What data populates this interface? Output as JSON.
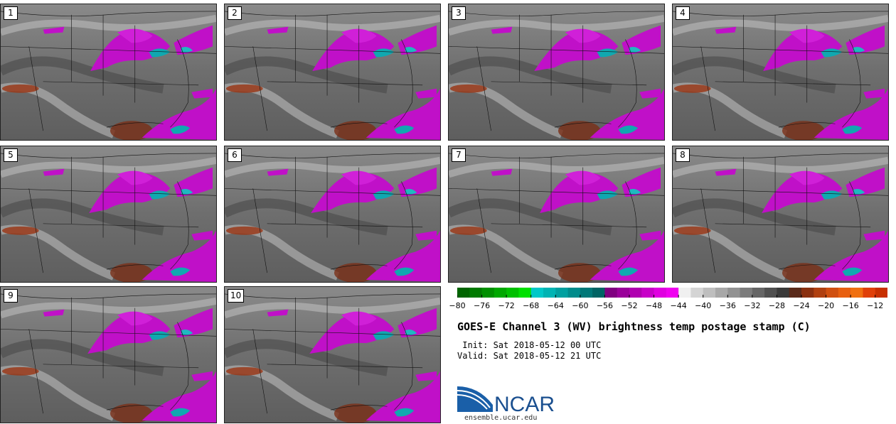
{
  "panels": [
    {
      "label": "1"
    },
    {
      "label": "2"
    },
    {
      "label": "3"
    },
    {
      "label": "4"
    },
    {
      "label": "5"
    },
    {
      "label": "6"
    },
    {
      "label": "7"
    },
    {
      "label": "8"
    },
    {
      "label": "9"
    },
    {
      "label": "10"
    }
  ],
  "colorbar": {
    "min": -80,
    "max": -10,
    "step": 2,
    "colors": [
      "#006400",
      "#007a00",
      "#009000",
      "#00a800",
      "#00c000",
      "#00e000",
      "#00c8c8",
      "#00b4b4",
      "#00a0a0",
      "#008c8c",
      "#007878",
      "#006464",
      "#800080",
      "#9a009a",
      "#b000b0",
      "#c800c8",
      "#e000e0",
      "#f000f0",
      "#f0f0f0",
      "#d4d4d4",
      "#bebebe",
      "#a8a8a8",
      "#929292",
      "#7c7c7c",
      "#666666",
      "#505050",
      "#3a3a3a",
      "#5a2a1a",
      "#8a3010",
      "#b04010",
      "#d05010",
      "#e86010",
      "#f07010",
      "#e04008",
      "#c83000"
    ],
    "tick_labels": [
      "-80",
      "-76",
      "-72",
      "-68",
      "-64",
      "-60",
      "-56",
      "-52",
      "-48",
      "-44",
      "-40",
      "-36",
      "-32",
      "-28",
      "-24",
      "-20",
      "-16",
      "-12"
    ],
    "tick_values": [
      -80,
      -76,
      -72,
      -68,
      -64,
      -60,
      -56,
      -52,
      -48,
      -44,
      -40,
      -36,
      -32,
      -28,
      -24,
      -20,
      -16,
      -12
    ]
  },
  "title": "GOES-E Channel 3 (WV) brightness temp postage stamp (C)",
  "init_line": " Init: Sat 2018-05-12 00 UTC",
  "valid_line": "Valid: Sat 2018-05-12 21 UTC",
  "logo_text": "NCAR",
  "url": "ensemble.ucar.edu"
}
